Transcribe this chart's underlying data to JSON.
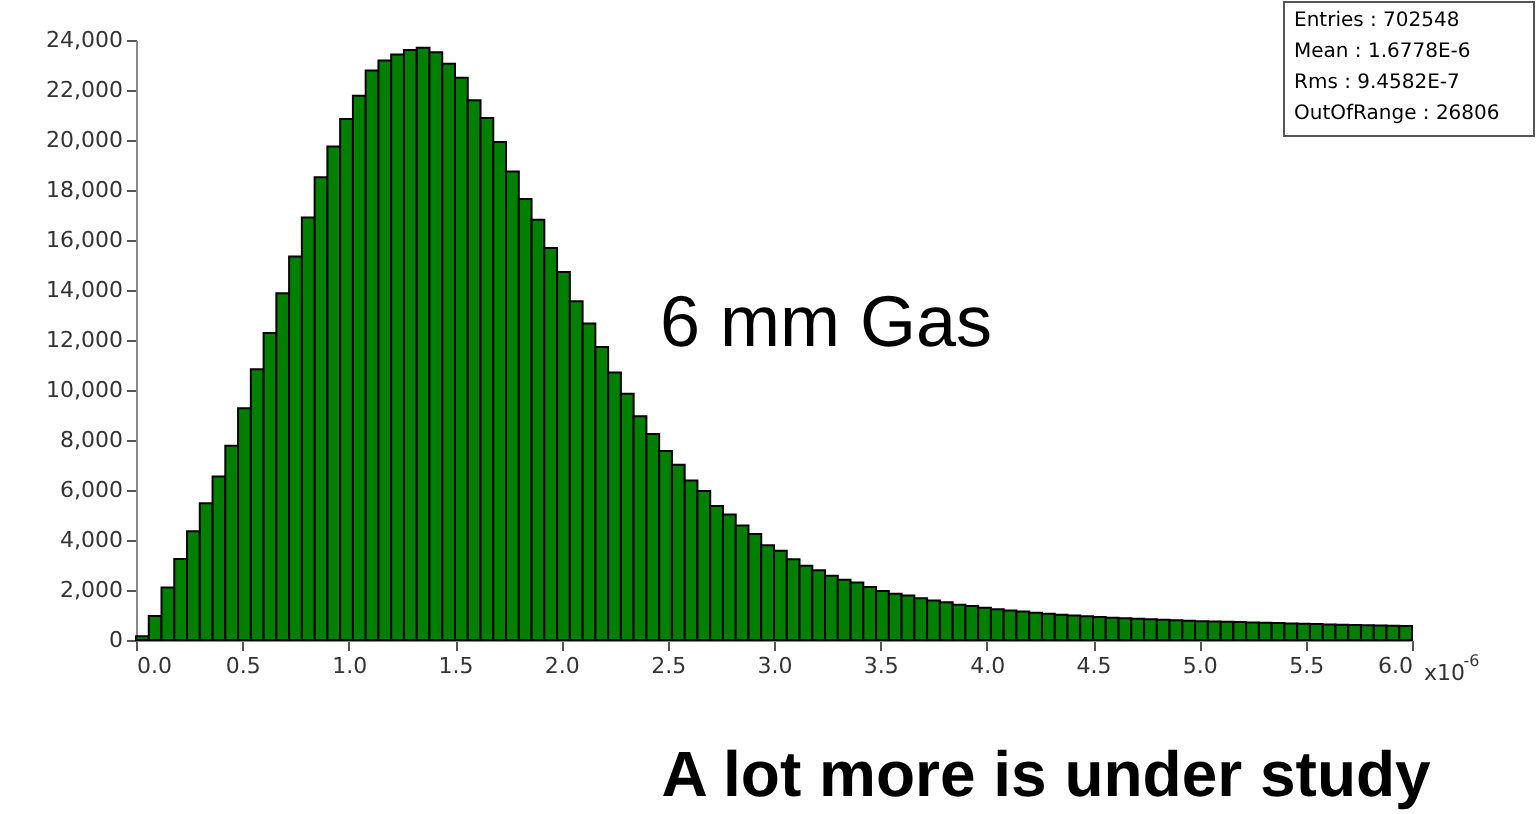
{
  "chart_data": {
    "type": "histogram",
    "bins": [
      0,
      0.06,
      0.12,
      0.18,
      0.24,
      0.3,
      0.36,
      0.42,
      0.48,
      0.54,
      0.6,
      0.66,
      0.72,
      0.78,
      0.84,
      0.9,
      0.96,
      1.02,
      1.08,
      1.14,
      1.2,
      1.26,
      1.32,
      1.38,
      1.44,
      1.5,
      1.56,
      1.62,
      1.68,
      1.74,
      1.8,
      1.86,
      1.92,
      1.98,
      2.04,
      2.1,
      2.16,
      2.22,
      2.28,
      2.34,
      2.4,
      2.46,
      2.52,
      2.58,
      2.64,
      2.7,
      2.76,
      2.82,
      2.88,
      2.94,
      3,
      3.06,
      3.12,
      3.18,
      3.24,
      3.3,
      3.36,
      3.42,
      3.48,
      3.54,
      3.6,
      3.66,
      3.72,
      3.78,
      3.84,
      3.9,
      3.96,
      4.02,
      4.08,
      4.14,
      4.2,
      4.26,
      4.32,
      4.38,
      4.44,
      4.5,
      4.56,
      4.62,
      4.68,
      4.74,
      4.8,
      4.86,
      4.92,
      4.98,
      5.04,
      5.1,
      5.16,
      5.22,
      5.28,
      5.34,
      5.4,
      5.46,
      5.52,
      5.58,
      5.64,
      5.7,
      5.76,
      5.82,
      5.88,
      5.94,
      6
    ],
    "values": [
      150,
      960,
      2100,
      3240,
      4350,
      5470,
      6540,
      7770,
      9270,
      10830,
      12280,
      13870,
      15340,
      16900,
      18510,
      19740,
      20840,
      21770,
      22780,
      23180,
      23420,
      23600,
      23690,
      23510,
      23050,
      22490,
      21590,
      20880,
      19920,
      18740,
      17640,
      16810,
      15680,
      14720,
      13550,
      12660,
      11720,
      10700,
      9850,
      8950,
      8240,
      7560,
      7010,
      6380,
      5960,
      5360,
      5020,
      4580,
      4240,
      3790,
      3570,
      3230,
      2970,
      2790,
      2570,
      2410,
      2300,
      2120,
      1960,
      1850,
      1780,
      1670,
      1580,
      1510,
      1410,
      1360,
      1290,
      1230,
      1180,
      1140,
      1090,
      1050,
      1010,
      980,
      950,
      920,
      890,
      870,
      850,
      830,
      810,
      790,
      770,
      750,
      740,
      730,
      720,
      700,
      690,
      680,
      660,
      650,
      640,
      620,
      610,
      600,
      590,
      580,
      570,
      560
    ],
    "color": "#008000",
    "xlabel": "x10$^{-6}$",
    "xlim": [
      0,
      6
    ],
    "xticks": [
      {
        "value": 0,
        "label": "0.0"
      },
      {
        "value": 0.5,
        "label": "0.5"
      },
      {
        "value": 1,
        "label": "1.0"
      },
      {
        "value": 1.5,
        "label": "1.5"
      },
      {
        "value": 2,
        "label": "2.0"
      },
      {
        "value": 2.5,
        "label": "2.5"
      },
      {
        "value": 3,
        "label": "3.0"
      },
      {
        "value": 3.5,
        "label": "3.5"
      },
      {
        "value": 4,
        "label": "4.0"
      },
      {
        "value": 4.5,
        "label": "4.5"
      },
      {
        "value": 5,
        "label": "5.0"
      },
      {
        "value": 5.5,
        "label": "5.5"
      },
      {
        "value": 6,
        "label": "6.0"
      }
    ],
    "ylim": [
      0,
      24000
    ],
    "yticks": [
      0,
      {
        "value": 2000,
        "label": "2,000"
      },
      {
        "value": 4000,
        "label": "4,000"
      },
      {
        "value": 6000,
        "label": "6,000"
      },
      {
        "value": 8000,
        "label": "8,000"
      },
      {
        "value": 10000,
        "label": "10,000"
      },
      {
        "value": 12000,
        "label": "12,000"
      },
      {
        "value": 14000,
        "label": "14,000"
      },
      {
        "value": 16000,
        "label": "16,000"
      },
      {
        "value": 18000,
        "label": "18,000"
      },
      {
        "value": 20000,
        "label": "20,000"
      },
      {
        "value": 22000,
        "label": "22,000"
      },
      {
        "value": 24000,
        "label": "24,000"
      }
    ],
    "annotations": [
      "6 mm Gas",
      "A lot more is under study",
      "Entries : 702548",
      "Mean : 1.6778E-6",
      "Rms : 9.4582E-7",
      "OutOfRange : 26806"
    ]
  }
}
